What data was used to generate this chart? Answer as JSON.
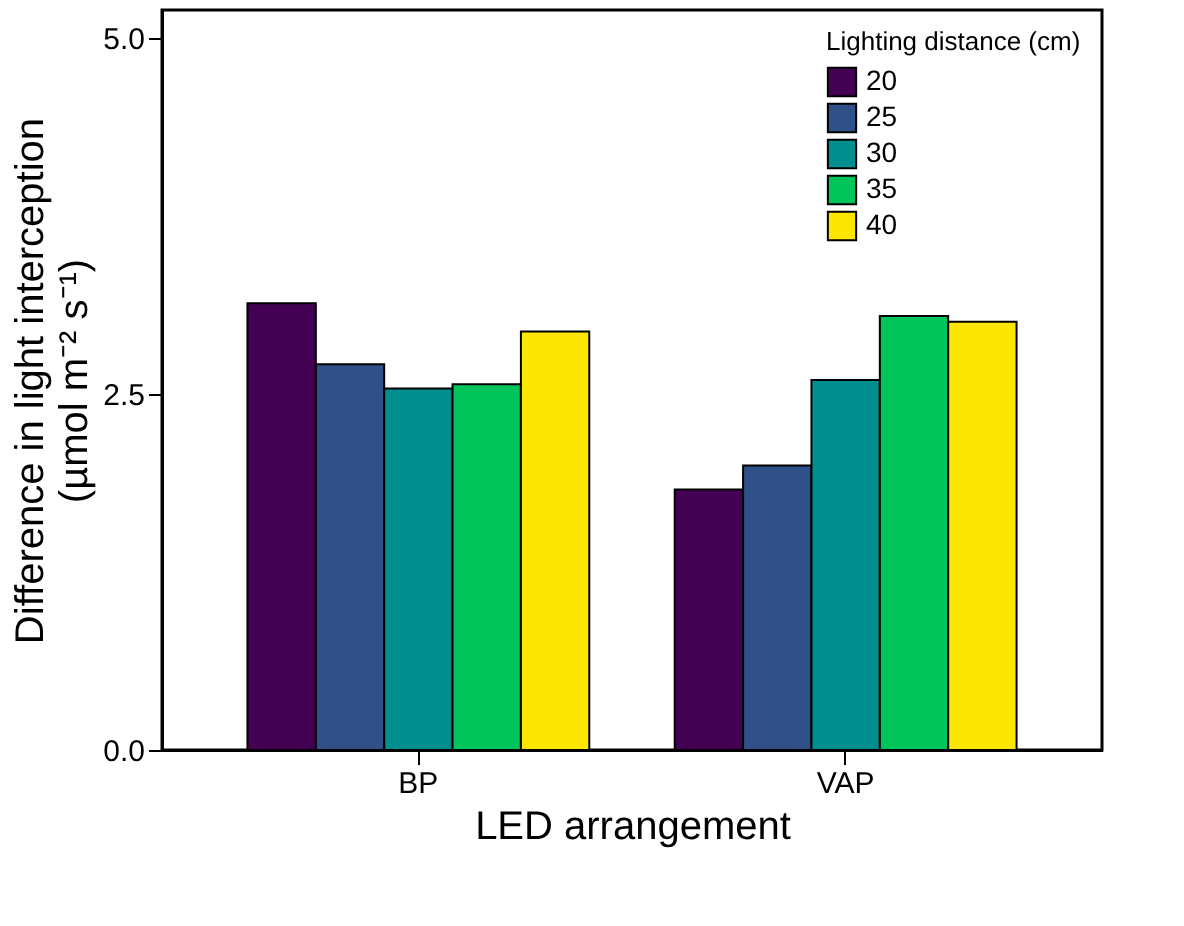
{
  "chart_data": {
    "type": "bar",
    "xlabel": "LED arrangement",
    "ylabel": "Difference in light interception (µmol m⁻² s⁻¹)",
    "legend_title": "Lighting distance (cm)",
    "legend": "top right",
    "grid": false,
    "categories": [
      "BP",
      "VAP"
    ],
    "series": [
      {
        "name": "20",
        "color": "#440154",
        "values": [
          3.14,
          1.83
        ]
      },
      {
        "name": "25",
        "color": "#2f5089",
        "values": [
          2.71,
          2.0
        ]
      },
      {
        "name": "30",
        "color": "#008e8e",
        "values": [
          2.54,
          2.6
        ]
      },
      {
        "name": "35",
        "color": "#00c55a",
        "values": [
          2.57,
          3.05
        ]
      },
      {
        "name": "40",
        "color": "#fde700",
        "values": [
          2.94,
          3.01
        ]
      }
    ],
    "ylim": [
      0,
      5.2
    ],
    "yticks": [
      {
        "value": 0,
        "label": "0.0"
      },
      {
        "value": 2.5,
        "label": "2.5"
      },
      {
        "value": 5,
        "label": "5.0"
      }
    ]
  }
}
